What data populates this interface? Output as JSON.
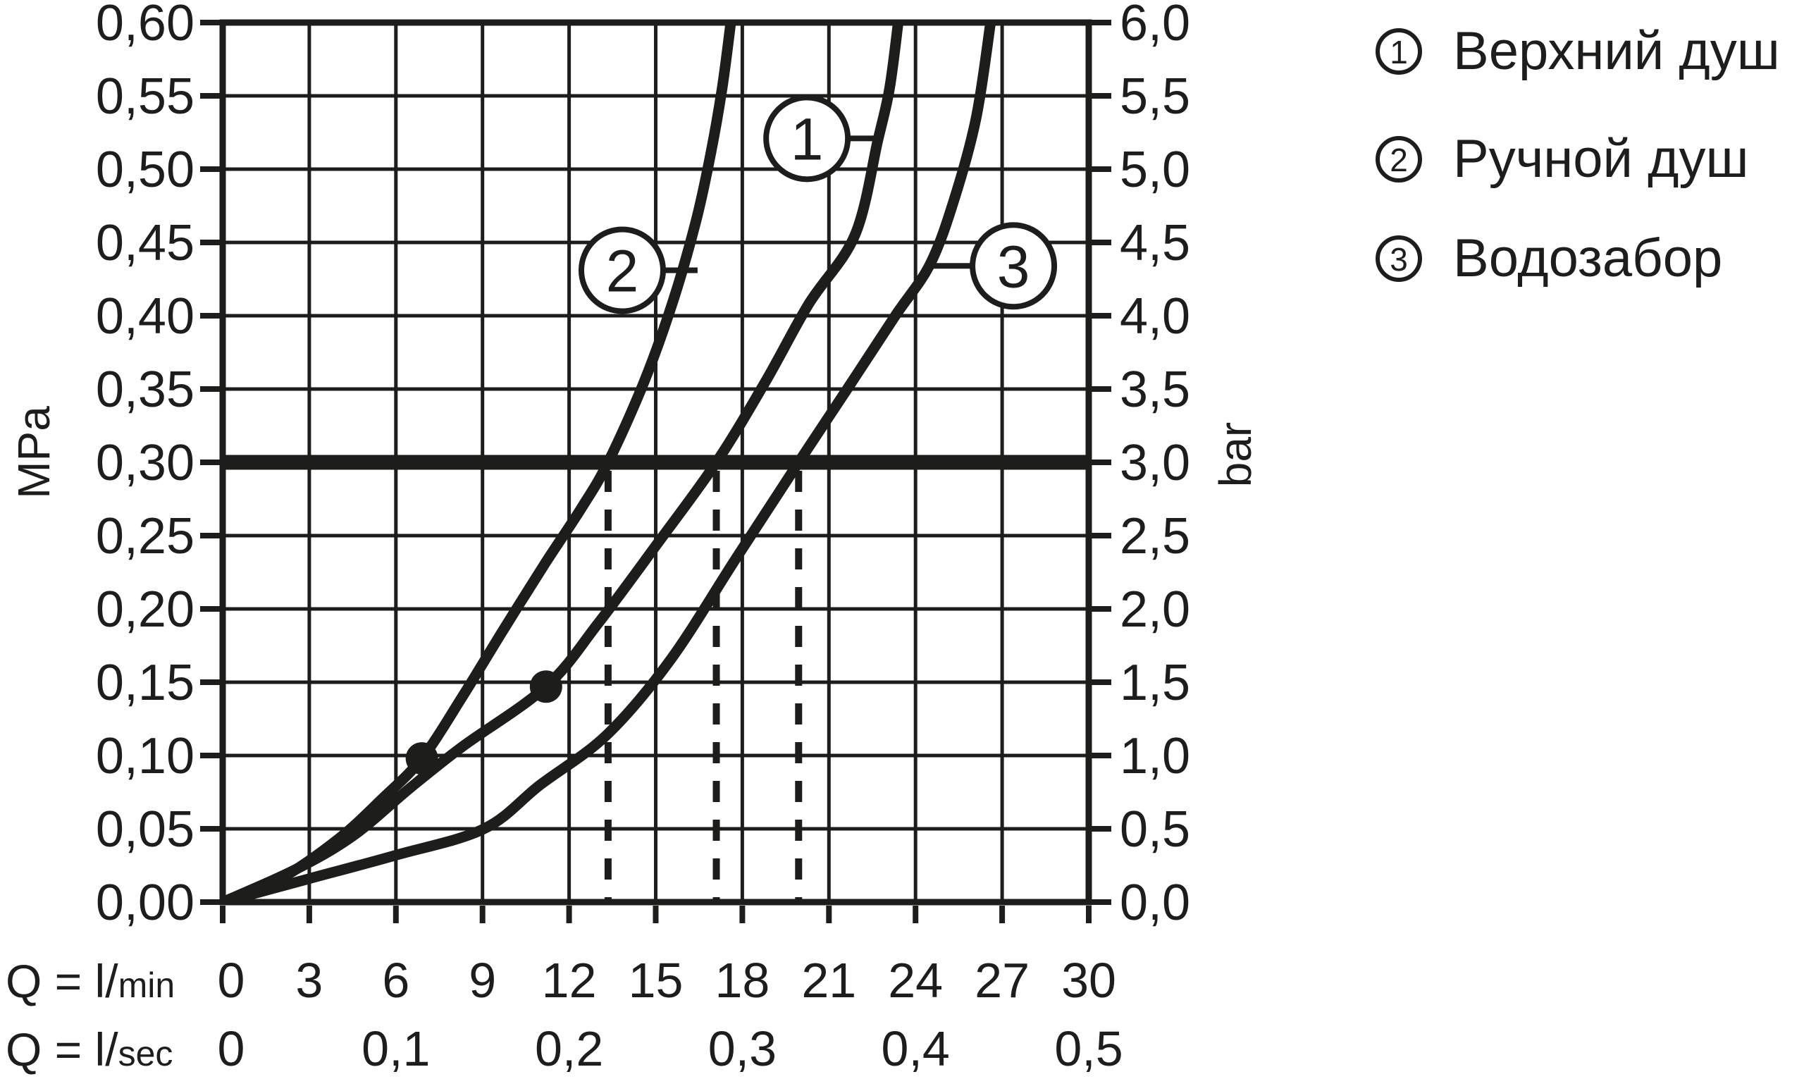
{
  "figure": {
    "bg": "#ffffff",
    "ink": "#1d1d1b"
  },
  "legend": {
    "items": [
      {
        "num": "1",
        "label": "Верхний душ"
      },
      {
        "num": "2",
        "label": "Ручной душ"
      },
      {
        "num": "3",
        "label": "Водозабор"
      }
    ]
  },
  "chart_data": {
    "type": "line",
    "title": "",
    "x_axis": {
      "min": 0,
      "max": 30,
      "grid_step": 3,
      "rows": [
        {
          "label_big": "Q = l/",
          "label_small": "min",
          "ticks": [
            {
              "q": 0,
              "label": "0"
            },
            {
              "q": 3,
              "label": "3"
            },
            {
              "q": 6,
              "label": "6"
            },
            {
              "q": 9,
              "label": "9"
            },
            {
              "q": 12,
              "label": "12"
            },
            {
              "q": 15,
              "label": "15"
            },
            {
              "q": 18,
              "label": "18"
            },
            {
              "q": 21,
              "label": "21"
            },
            {
              "q": 24,
              "label": "24"
            },
            {
              "q": 27,
              "label": "27"
            },
            {
              "q": 30,
              "label": "30"
            }
          ]
        },
        {
          "label_big": "Q = l/",
          "label_small": "sec",
          "ticks": [
            {
              "q": 0,
              "label": "0"
            },
            {
              "q": 6,
              "label": "0,1"
            },
            {
              "q": 12,
              "label": "0,2"
            },
            {
              "q": 18,
              "label": "0,3"
            },
            {
              "q": 24,
              "label": "0,4"
            },
            {
              "q": 30,
              "label": "0,5"
            }
          ]
        }
      ]
    },
    "y_axis_left": {
      "unit": "MPa",
      "min": 0,
      "max": 0.6,
      "grid_step": 0.05,
      "ticks": [
        {
          "p": 0.6,
          "label": "0,60"
        },
        {
          "p": 0.55,
          "label": "0,55"
        },
        {
          "p": 0.5,
          "label": "0,50"
        },
        {
          "p": 0.45,
          "label": "0,45"
        },
        {
          "p": 0.4,
          "label": "0,40"
        },
        {
          "p": 0.35,
          "label": "0,35"
        },
        {
          "p": 0.3,
          "label": "0,30"
        },
        {
          "p": 0.25,
          "label": "0,25"
        },
        {
          "p": 0.2,
          "label": "0,20"
        },
        {
          "p": 0.15,
          "label": "0,15"
        },
        {
          "p": 0.1,
          "label": "0,10"
        },
        {
          "p": 0.05,
          "label": "0,05"
        },
        {
          "p": 0.0,
          "label": "0,00"
        }
      ]
    },
    "y_axis_right": {
      "unit": "bar",
      "ticks": [
        {
          "p": 0.6,
          "label": "6,0"
        },
        {
          "p": 0.55,
          "label": "5,5"
        },
        {
          "p": 0.5,
          "label": "5,0"
        },
        {
          "p": 0.45,
          "label": "4,5"
        },
        {
          "p": 0.4,
          "label": "4,0"
        },
        {
          "p": 0.35,
          "label": "3,5"
        },
        {
          "p": 0.3,
          "label": "3,0"
        },
        {
          "p": 0.25,
          "label": "2,5"
        },
        {
          "p": 0.2,
          "label": "2,0"
        },
        {
          "p": 0.15,
          "label": "1,5"
        },
        {
          "p": 0.1,
          "label": "1,0"
        },
        {
          "p": 0.05,
          "label": "0,5"
        },
        {
          "p": 0.0,
          "label": "0,0"
        }
      ]
    },
    "reference_line_mpa": 0.3,
    "dashed_guides_lmin": [
      13.35,
      17.1,
      19.95
    ],
    "series": [
      {
        "id": "1",
        "name": "Верхний душ",
        "points": [
          [
            0,
            0
          ],
          [
            2.5,
            0.022
          ],
          [
            4.5,
            0.045
          ],
          [
            6.5,
            0.078
          ],
          [
            8.3,
            0.106
          ],
          [
            11.2,
            0.147
          ],
          [
            13,
            0.19
          ],
          [
            15,
            0.243
          ],
          [
            17.1,
            0.3
          ],
          [
            18.8,
            0.355
          ],
          [
            20.3,
            0.408
          ],
          [
            21.9,
            0.455
          ],
          [
            22.7,
            0.52
          ],
          [
            23.1,
            0.555
          ],
          [
            23.4,
            0.6
          ]
        ]
      },
      {
        "id": "2",
        "name": "Ручной душ",
        "points": [
          [
            0,
            0
          ],
          [
            2,
            0.016
          ],
          [
            4,
            0.043
          ],
          [
            5.5,
            0.07
          ],
          [
            6.9,
            0.098
          ],
          [
            8.3,
            0.14
          ],
          [
            9.7,
            0.185
          ],
          [
            11.2,
            0.232
          ],
          [
            12.4,
            0.268
          ],
          [
            13.35,
            0.3
          ],
          [
            14.6,
            0.355
          ],
          [
            15.6,
            0.41
          ],
          [
            16.4,
            0.465
          ],
          [
            16.9,
            0.51
          ],
          [
            17.3,
            0.555
          ],
          [
            17.6,
            0.6
          ]
        ]
      },
      {
        "id": "3",
        "name": "Водозабор",
        "points": [
          [
            0,
            0
          ],
          [
            3,
            0.016
          ],
          [
            6,
            0.032
          ],
          [
            9.05,
            0.05
          ],
          [
            11,
            0.08
          ],
          [
            13.3,
            0.114
          ],
          [
            15.5,
            0.165
          ],
          [
            17.8,
            0.235
          ],
          [
            19.95,
            0.3
          ],
          [
            21.7,
            0.352
          ],
          [
            23.3,
            0.4
          ],
          [
            24.5,
            0.435
          ],
          [
            25.35,
            0.48
          ],
          [
            26.1,
            0.535
          ],
          [
            26.6,
            0.6
          ]
        ]
      }
    ],
    "point_markers": [
      {
        "q": 6.9,
        "p": 0.098
      },
      {
        "q": 11.2,
        "p": 0.147
      }
    ],
    "curve_labels": [
      {
        "num": "1",
        "q": 20.24,
        "p": 0.521,
        "attach_q": 22.56
      },
      {
        "num": "2",
        "q": 13.84,
        "p": 0.431,
        "attach_q": 16.45
      },
      {
        "num": "3",
        "q": 27.39,
        "p": 0.434,
        "attach_q": 24.5
      }
    ]
  }
}
